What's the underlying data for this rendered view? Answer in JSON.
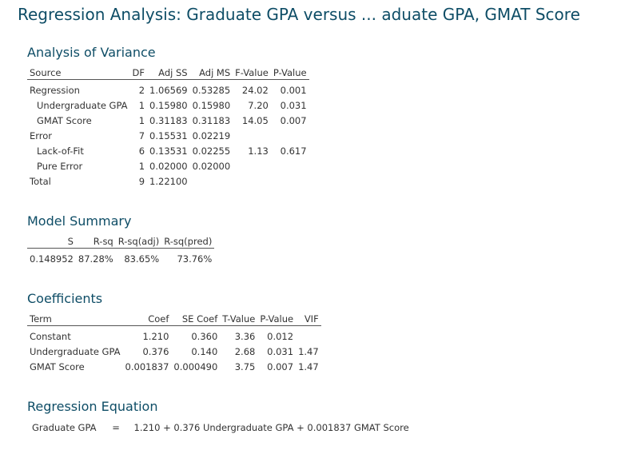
{
  "title": "Regression Analysis: Graduate GPA versus ... aduate GPA, GMAT Score",
  "anova": {
    "heading": "Analysis of Variance",
    "columns": [
      "Source",
      "DF",
      "Adj SS",
      "Adj MS",
      "F-Value",
      "P-Value"
    ],
    "rows": [
      {
        "source": "Regression",
        "df": "2",
        "adj_ss": "1.06569",
        "adj_ms": "0.53285",
        "f": "24.02",
        "p": "0.001"
      },
      {
        "source": "Undergraduate GPA",
        "df": "1",
        "adj_ss": "0.15980",
        "adj_ms": "0.15980",
        "f": "7.20",
        "p": "0.031"
      },
      {
        "source": "GMAT Score",
        "df": "1",
        "adj_ss": "0.31183",
        "adj_ms": "0.31183",
        "f": "14.05",
        "p": "0.007"
      },
      {
        "source": "Error",
        "df": "7",
        "adj_ss": "0.15531",
        "adj_ms": "0.02219",
        "f": "",
        "p": ""
      },
      {
        "source": "Lack-of-Fit",
        "df": "6",
        "adj_ss": "0.13531",
        "adj_ms": "0.02255",
        "f": "1.13",
        "p": "0.617"
      },
      {
        "source": "Pure Error",
        "df": "1",
        "adj_ss": "0.02000",
        "adj_ms": "0.02000",
        "f": "",
        "p": ""
      },
      {
        "source": "Total",
        "df": "9",
        "adj_ss": "1.22100",
        "adj_ms": "",
        "f": "",
        "p": ""
      }
    ]
  },
  "model_summary": {
    "heading": "Model Summary",
    "columns": [
      "S",
      "R-sq",
      "R-sq(adj)",
      "R-sq(pred)"
    ],
    "row": {
      "s": "0.148952",
      "rsq": "87.28%",
      "rsq_adj": "83.65%",
      "rsq_pred": "73.76%"
    }
  },
  "coefficients": {
    "heading": "Coefficients",
    "columns": [
      "Term",
      "Coef",
      "SE Coef",
      "T-Value",
      "P-Value",
      "VIF"
    ],
    "rows": [
      {
        "term": "Constant",
        "coef": "1.210",
        "se": "0.360",
        "t": "3.36",
        "p": "0.012",
        "vif": ""
      },
      {
        "term": "Undergraduate GPA",
        "coef": "0.376",
        "se": "0.140",
        "t": "2.68",
        "p": "0.031",
        "vif": "1.47"
      },
      {
        "term": "GMAT Score",
        "coef": "0.001837",
        "se": "0.000490",
        "t": "3.75",
        "p": "0.007",
        "vif": "1.47"
      }
    ]
  },
  "equation": {
    "heading": "Regression Equation",
    "lhs": "Graduate GPA",
    "equals": "=",
    "rhs": "1.210 + 0.376 Undergraduate GPA + 0.001837 GMAT Score"
  }
}
